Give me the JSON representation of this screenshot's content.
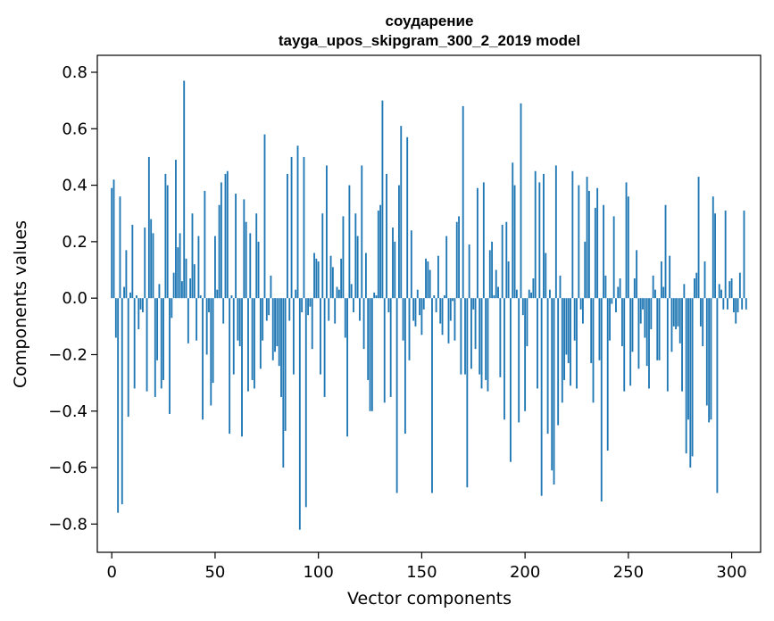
{
  "chart_data": {
    "type": "bar",
    "title": "соударение",
    "subtitle": "tayga_upos_skipgram_300_2_2019 model",
    "xlabel": "Vector components",
    "ylabel": "Components values",
    "xlim": [
      -7,
      314
    ],
    "ylim": [
      -0.9,
      0.86
    ],
    "xticks": [
      0,
      50,
      100,
      150,
      200,
      250,
      300
    ],
    "yticks": [
      -0.8,
      -0.6,
      -0.4,
      -0.2,
      0.0,
      0.2,
      0.4,
      0.6,
      0.8
    ],
    "xtick_labels": [
      "0",
      "50",
      "100",
      "150",
      "200",
      "250",
      "300"
    ],
    "ytick_labels": [
      "−0.8",
      "−0.6",
      "−0.4",
      "−0.2",
      "0.0",
      "0.2",
      "0.4",
      "0.6",
      "0.8"
    ],
    "grid": false,
    "bar_color": "#1f77b4",
    "values": [
      0.39,
      0.42,
      -0.14,
      -0.76,
      0.36,
      -0.73,
      0.04,
      0.17,
      -0.42,
      0.02,
      0.26,
      -0.32,
      0.01,
      -0.11,
      -0.04,
      -0.05,
      0.25,
      -0.33,
      0.5,
      0.28,
      0.23,
      -0.35,
      -0.22,
      0.05,
      -0.32,
      -0.29,
      0.44,
      0.4,
      -0.41,
      -0.07,
      0.09,
      0.49,
      0.18,
      0.23,
      0.06,
      0.77,
      0.14,
      -0.16,
      0.07,
      0.3,
      0.12,
      -0.15,
      0.22,
      0.01,
      -0.43,
      0.38,
      -0.2,
      -0.05,
      -0.38,
      -0.3,
      0.22,
      0.03,
      0.33,
      0.41,
      -0.09,
      0.44,
      0.45,
      -0.48,
      0.01,
      -0.27,
      0.37,
      -0.15,
      -0.17,
      -0.49,
      0.35,
      0.27,
      -0.33,
      0.23,
      -0.29,
      -0.32,
      0.3,
      0.2,
      -0.25,
      -0.15,
      0.58,
      -0.08,
      -0.06,
      0.08,
      -0.22,
      -0.19,
      -0.17,
      -0.24,
      -0.35,
      -0.6,
      -0.47,
      0.44,
      -0.08,
      0.5,
      -0.27,
      0.03,
      0.54,
      -0.82,
      -0.05,
      0.5,
      -0.74,
      -0.06,
      -0.03,
      -0.18,
      0.16,
      0.14,
      0.13,
      -0.27,
      0.3,
      -0.35,
      0.47,
      -0.08,
      0.15,
      0.11,
      -0.09,
      0.04,
      0.03,
      0.14,
      0.29,
      -0.14,
      -0.49,
      0.4,
      0.05,
      -0.05,
      0.3,
      0.22,
      -0.08,
      0.47,
      -0.18,
      0.16,
      -0.29,
      -0.4,
      -0.4,
      0.02,
      0.01,
      0.31,
      0.33,
      0.7,
      -0.37,
      0.44,
      -0.05,
      -0.35,
      0.25,
      0.2,
      -0.69,
      0.4,
      0.61,
      -0.15,
      -0.48,
      0.57,
      -0.22,
      0.24,
      -0.08,
      -0.1,
      0.03,
      -0.06,
      -0.13,
      -0.04,
      0.14,
      0.13,
      0.1,
      -0.69,
      0.01,
      -0.05,
      0.15,
      -0.09,
      -0.13,
      0.01,
      0.22,
      -0.16,
      -0.08,
      -0.01,
      -0.15,
      0.27,
      0.29,
      -0.27,
      0.68,
      -0.27,
      -0.67,
      0.19,
      -0.25,
      -0.04,
      -0.18,
      0.39,
      -0.27,
      -0.32,
      0.41,
      -0.29,
      -0.33,
      0.17,
      0.2,
      0.01,
      0.1,
      0.04,
      -0.28,
      0.26,
      -0.43,
      0.27,
      0.13,
      -0.58,
      0.48,
      0.4,
      0.03,
      -0.44,
      0.69,
      -0.06,
      -0.4,
      -0.17,
      0.03,
      0.02,
      0.07,
      0.45,
      -0.32,
      0.41,
      -0.7,
      0.44,
      0.16,
      -0.48,
      0.03,
      -0.61,
      -0.66,
      0.47,
      -0.45,
      0.08,
      -0.37,
      -0.29,
      -0.2,
      -0.23,
      -0.31,
      0.45,
      -0.15,
      -0.32,
      0.4,
      -0.04,
      -0.09,
      0.2,
      0.43,
      0.38,
      -0.23,
      -0.37,
      0.32,
      0.39,
      -0.22,
      -0.72,
      0.33,
      0.08,
      -0.54,
      -0.15,
      -0.02,
      0.29,
      -0.05,
      0.04,
      0.07,
      -0.17,
      -0.33,
      0.41,
      0.36,
      -0.31,
      -0.19,
      0.07,
      0.17,
      -0.25,
      -0.09,
      -0.04,
      -0.14,
      -0.24,
      -0.32,
      -0.11,
      0.08,
      0.03,
      -0.22,
      -0.22,
      0.13,
      0.04,
      0.33,
      -0.33,
      0.15,
      -0.19,
      -0.1,
      -0.11,
      -0.1,
      -0.16,
      -0.33,
      0.05,
      -0.55,
      -0.43,
      -0.6,
      -0.56,
      0.07,
      0.09,
      0.43,
      -0.1,
      -0.17,
      0.13,
      -0.38,
      -0.44,
      -0.43,
      0.36,
      0.3,
      -0.69,
      0.05,
      0.03,
      -0.04,
      0.31,
      -0.04,
      0.06,
      0.07,
      -0.05,
      -0.09,
      -0.05,
      0.09,
      -0.04,
      0.31,
      -0.04
    ]
  }
}
